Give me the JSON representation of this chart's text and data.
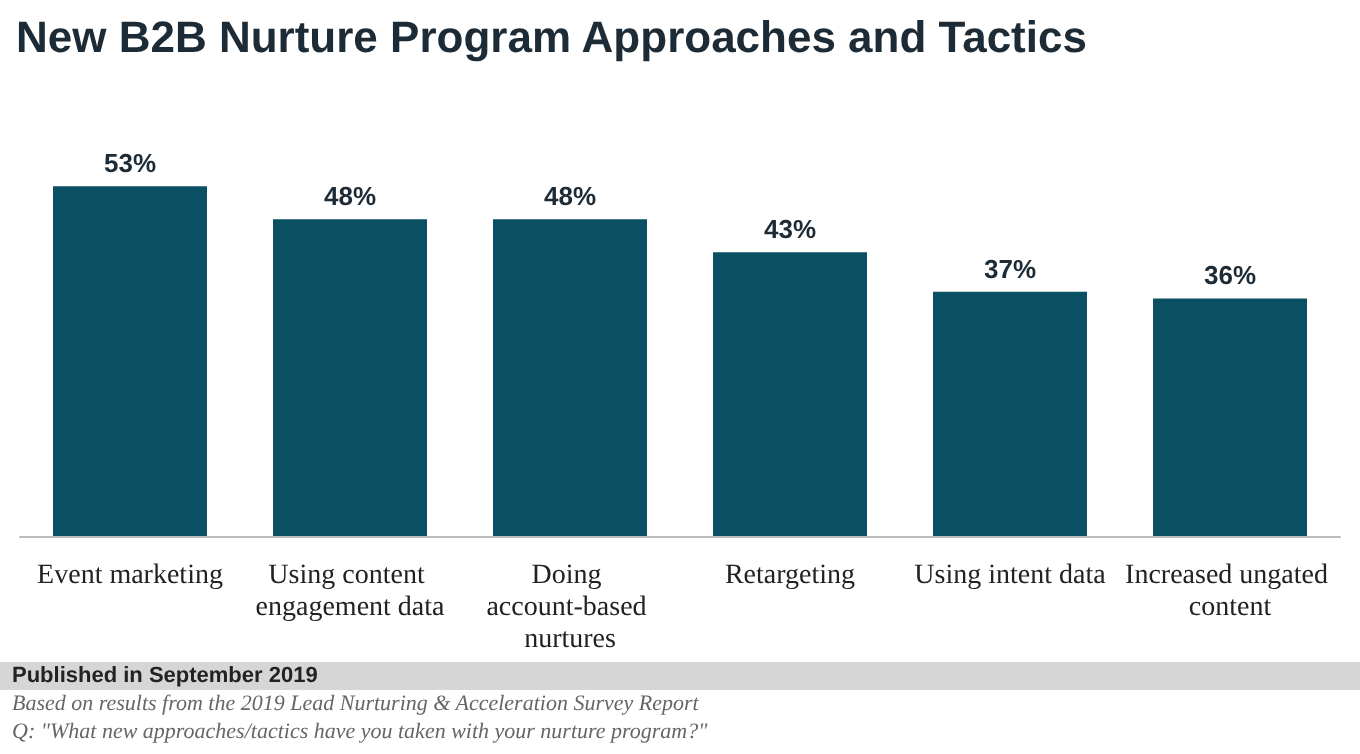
{
  "chart_data": {
    "type": "bar",
    "title": "New B2B Nurture Program Approaches and Tactics",
    "categories": [
      "Event marketing",
      "Using content engagement data",
      "Doing account-based nurtures",
      "Retargeting",
      "Using intent data",
      "Increased ungated content"
    ],
    "values": [
      53,
      48,
      48,
      43,
      37,
      36
    ],
    "value_labels": [
      "53%",
      "48%",
      "48%",
      "43%",
      "37%",
      "36%"
    ],
    "color": "#0b4f63",
    "grid": false,
    "annotations": [
      "Published in September 2019",
      "Based on results from the 2019 Lead Nurturing & Acceleration Survey Report",
      "Q: \"What new approaches/tactics have you taken with your nurture program?\""
    ]
  }
}
